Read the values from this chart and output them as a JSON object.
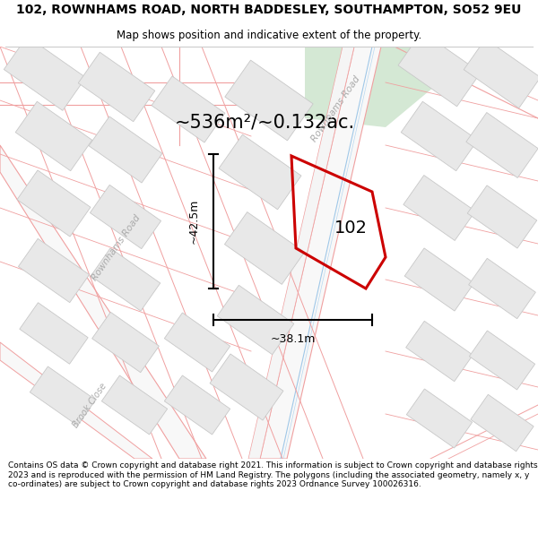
{
  "title": "102, ROWNHAMS ROAD, NORTH BADDESLEY, SOUTHAMPTON, SO52 9EU",
  "subtitle": "Map shows position and indicative extent of the property.",
  "area_text": "~536m²/~0.132ac.",
  "dim_vertical": "~42.5m",
  "dim_horizontal": "~38.1m",
  "label_102": "102",
  "road_label_left": "Rownhams Road",
  "road_label_top": "Rownhams Road",
  "road_label_brook": "Brook Close",
  "copyright_text": "Contains OS data © Crown copyright and database right 2021. This information is subject to Crown copyright and database rights 2023 and is reproduced with the permission of HM Land Registry. The polygons (including the associated geometry, namely x, y co-ordinates) are subject to Crown copyright and database rights 2023 Ordnance Survey 100026316.",
  "map_bg": "#ffffff",
  "fig_bg": "#ffffff",
  "property_color": "#cc0000",
  "road_line_color": "#f0a0a0",
  "road_fill_color": "#fafafa",
  "building_color": "#e8e8e8",
  "building_edge": "#c8c8c8",
  "green_color": "#d4e8d4",
  "blue_line_color": "#90b0d0",
  "dim_line_color": "#000000",
  "text_color": "#000000",
  "road_text_color": "#aaaaaa",
  "title_fontsize": 10,
  "subtitle_fontsize": 8.5,
  "area_fontsize": 15,
  "label_fontsize": 14,
  "copyright_fontsize": 6.5
}
